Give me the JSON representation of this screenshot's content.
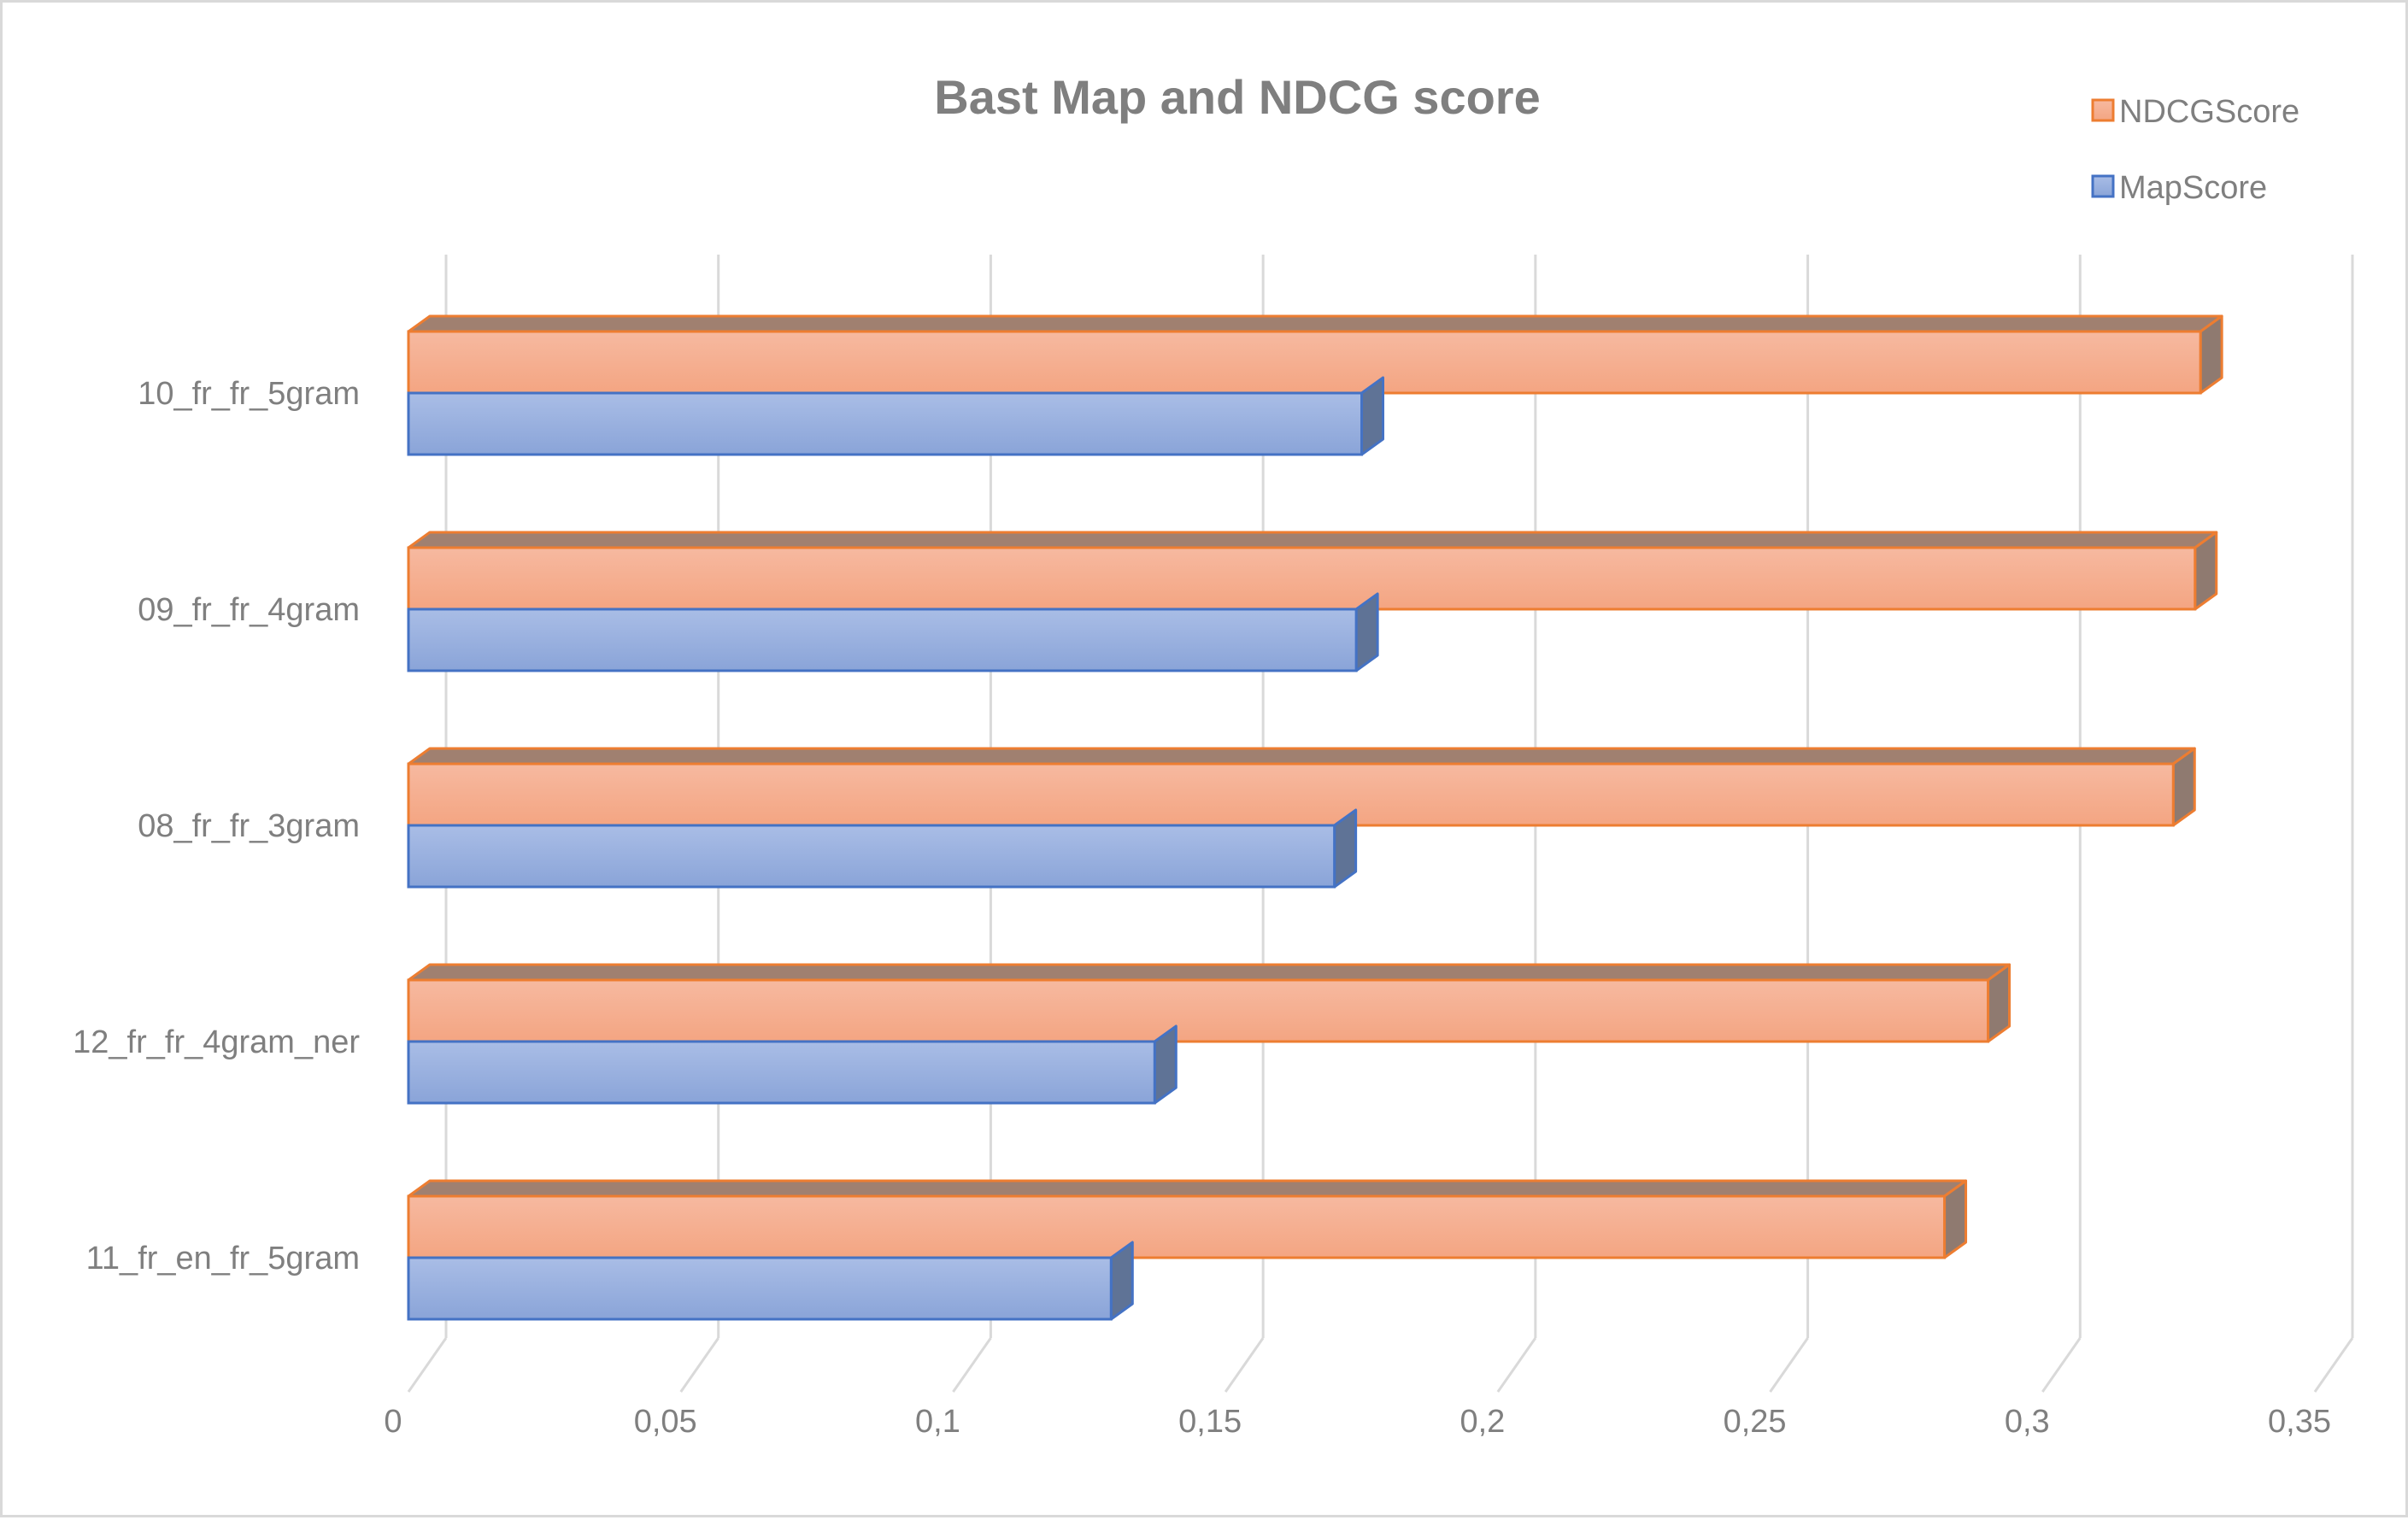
{
  "chart_data": {
    "type": "bar",
    "orientation": "horizontal",
    "style": "3d",
    "title": "Bast Map and NDCG score",
    "xlabel": "",
    "ylabel": "",
    "categories": [
      "10_fr_fr_5gram",
      "09_fr_fr_4gram",
      "08_fr_fr_3gram",
      "12_fr_fr_4gram_ner",
      "11_fr_en_fr_5gram"
    ],
    "series": [
      {
        "name": "NDCGScore",
        "values": [
          0.329,
          0.328,
          0.324,
          0.29,
          0.282
        ],
        "color": "#f4a582",
        "edge": "#ed7d31"
      },
      {
        "name": "MapScore",
        "values": [
          0.175,
          0.174,
          0.17,
          0.137,
          0.129
        ],
        "color": "#8faadc",
        "edge": "#4472c4"
      }
    ],
    "xlim": [
      0,
      0.35
    ],
    "xticks": [
      0,
      0.05,
      0.1,
      0.15,
      0.2,
      0.25,
      0.3,
      0.35
    ],
    "xtick_labels": [
      "0",
      "0,05",
      "0,1",
      "0,15",
      "0,2",
      "0,25",
      "0,3",
      "0,35"
    ],
    "grid": true,
    "legend_position": "top-right"
  }
}
